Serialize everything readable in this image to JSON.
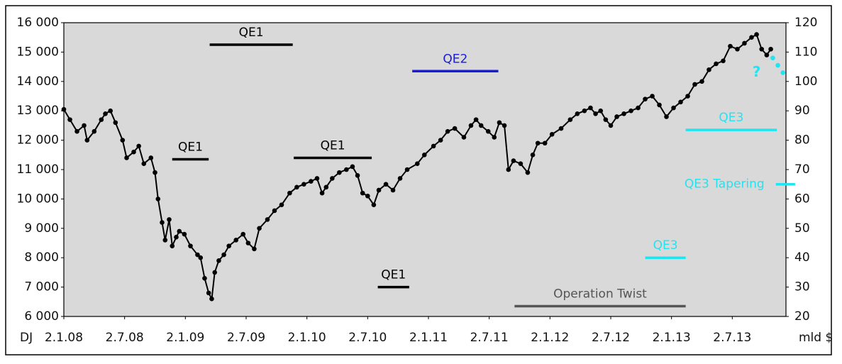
{
  "chart_data": {
    "type": "line",
    "x_unit_label": "DJ",
    "y2_unit_label": "mld $",
    "xlim": [
      0,
      71.3
    ],
    "xticks": [
      {
        "value": 0,
        "label": "2.1.08"
      },
      {
        "value": 6,
        "label": "2.7.08"
      },
      {
        "value": 12,
        "label": "2.1.09"
      },
      {
        "value": 18,
        "label": "2.7.09"
      },
      {
        "value": 24,
        "label": "2.1.10"
      },
      {
        "value": 30,
        "label": "2.7.10"
      },
      {
        "value": 36,
        "label": "2.1.11"
      },
      {
        "value": 42,
        "label": "2.7.11"
      },
      {
        "value": 48,
        "label": "2.1.12"
      },
      {
        "value": 54,
        "label": "2.7.12"
      },
      {
        "value": 60,
        "label": "2.1.13"
      },
      {
        "value": 66,
        "label": "2.7.13"
      }
    ],
    "ylim": [
      6000,
      16000
    ],
    "yticks": [
      {
        "value": 6000,
        "label": "6 000"
      },
      {
        "value": 7000,
        "label": "7 000"
      },
      {
        "value": 8000,
        "label": "8 000"
      },
      {
        "value": 9000,
        "label": "9 000"
      },
      {
        "value": 10000,
        "label": "10 000"
      },
      {
        "value": 11000,
        "label": "11 000"
      },
      {
        "value": 12000,
        "label": "12 000"
      },
      {
        "value": 13000,
        "label": "13 000"
      },
      {
        "value": 14000,
        "label": "14 000"
      },
      {
        "value": 15000,
        "label": "15 000"
      },
      {
        "value": 16000,
        "label": "16 000"
      }
    ],
    "y2lim": [
      20,
      120
    ],
    "y2ticks": [
      20,
      30,
      40,
      50,
      60,
      70,
      80,
      90,
      100,
      110,
      120
    ],
    "background": "#d9d9d9",
    "series": [
      {
        "color": "#000000",
        "line": true,
        "x": [
          0,
          0.6,
          1.3,
          2.0,
          2.3,
          3.0,
          3.7,
          4.1,
          4.6,
          5.1,
          5.8,
          6.2,
          6.9,
          7.4,
          7.9,
          8.6,
          9.0,
          9.3,
          9.7,
          10.0,
          10.4,
          10.7,
          11.1,
          11.4,
          11.9,
          12.5,
          13.2,
          13.5,
          13.9,
          14.3,
          14.6,
          14.9,
          15.3,
          15.8,
          16.3,
          17.0,
          17.7,
          18.2,
          18.8,
          19.3,
          20.1,
          20.8,
          21.5,
          22.3,
          23.0,
          23.7,
          24.4,
          25.0,
          25.5,
          25.9,
          26.5,
          27.2,
          27.9,
          28.5,
          29.0,
          29.5,
          30.0,
          30.6,
          31.1,
          31.8,
          32.5,
          33.2,
          33.9,
          34.9,
          35.6,
          36.5,
          37.2,
          37.9,
          38.6,
          39.5,
          40.2,
          40.7,
          41.2,
          41.9,
          42.5,
          43.0,
          43.5,
          43.9,
          44.4,
          45.1,
          45.8,
          46.3,
          46.8,
          47.5,
          48.2,
          49.1,
          50.0,
          50.7,
          51.4,
          52.0,
          52.5,
          53.0,
          53.5,
          54.0,
          54.6,
          55.3,
          56.0,
          56.7,
          57.4,
          58.1,
          58.8,
          59.5,
          60.2,
          60.9,
          61.6,
          62.3,
          63.0,
          63.7,
          64.4,
          65.1,
          65.8,
          66.5,
          67.2,
          67.9,
          68.4,
          68.9,
          69.4,
          69.8
        ],
        "values": [
          13050,
          12700,
          12300,
          12500,
          12000,
          12300,
          12700,
          12900,
          13000,
          12600,
          12000,
          11400,
          11600,
          11800,
          11200,
          11400,
          10900,
          10000,
          9200,
          8600,
          9300,
          8400,
          8700,
          8900,
          8800,
          8400,
          8100,
          8000,
          7300,
          6800,
          6600,
          7500,
          7900,
          8100,
          8400,
          8600,
          8800,
          8500,
          8300,
          9000,
          9300,
          9600,
          9800,
          10200,
          10400,
          10500,
          10600,
          10700,
          10200,
          10400,
          10700,
          10900,
          11000,
          11100,
          10800,
          10200,
          10100,
          9800,
          10300,
          10500,
          10300,
          10700,
          11000,
          11200,
          11500,
          11800,
          12000,
          12300,
          12400,
          12100,
          12500,
          12700,
          12500,
          12300,
          12100,
          12600,
          12500,
          11000,
          11300,
          11200,
          10900,
          11500,
          11900,
          11900,
          12200,
          12400,
          12700,
          12900,
          13000,
          13100,
          12900,
          13000,
          12700,
          12500,
          12800,
          12900,
          13000,
          13100,
          13400,
          13500,
          13200,
          12800,
          13100,
          13300,
          13500,
          13900,
          14000,
          14400,
          14600,
          14700,
          15200,
          15100,
          15300,
          15500,
          15600,
          15100,
          14900,
          15100
        ]
      },
      {
        "color": "#22e3f0",
        "line": false,
        "x": [
          70.0,
          70.5,
          71.0
        ],
        "values": [
          14800,
          14550,
          14300
        ]
      }
    ],
    "annotations": [
      {
        "text": "QE1",
        "color": "#000000",
        "x": [
          14.4,
          22.6
        ],
        "y2": 112.5
      },
      {
        "text": "QE2",
        "color": "#1a1adc",
        "x": [
          34.4,
          42.9
        ],
        "y2": 103.5
      },
      {
        "text": "QE1",
        "color": "#000000",
        "x": [
          10.7,
          14.3
        ],
        "y2": 73.5
      },
      {
        "text": "QE1",
        "color": "#000000",
        "x": [
          22.7,
          30.4
        ],
        "y2": 74
      },
      {
        "text": "QE1",
        "color": "#000000",
        "x": [
          31.0,
          34.1
        ],
        "y2": 30
      },
      {
        "text": "QE3",
        "color": "#22e3f0",
        "x": [
          61.4,
          70.4
        ],
        "y2": 83.5
      },
      {
        "text": "QE3 Tapering",
        "color": "#22e3f0",
        "x": [
          70.3,
          72.2
        ],
        "y2": 65,
        "label_side": "left"
      },
      {
        "text": "QE3",
        "color": "#22e3f0",
        "x": [
          57.4,
          61.4
        ],
        "y2": 40
      },
      {
        "text": "Operation Twist",
        "color": "#555555",
        "x": [
          44.5,
          61.4
        ],
        "y2": 23.5
      }
    ],
    "texts": [
      {
        "text": "?",
        "color": "#22e3f0",
        "x": 68.4,
        "y2": 103
      }
    ]
  }
}
